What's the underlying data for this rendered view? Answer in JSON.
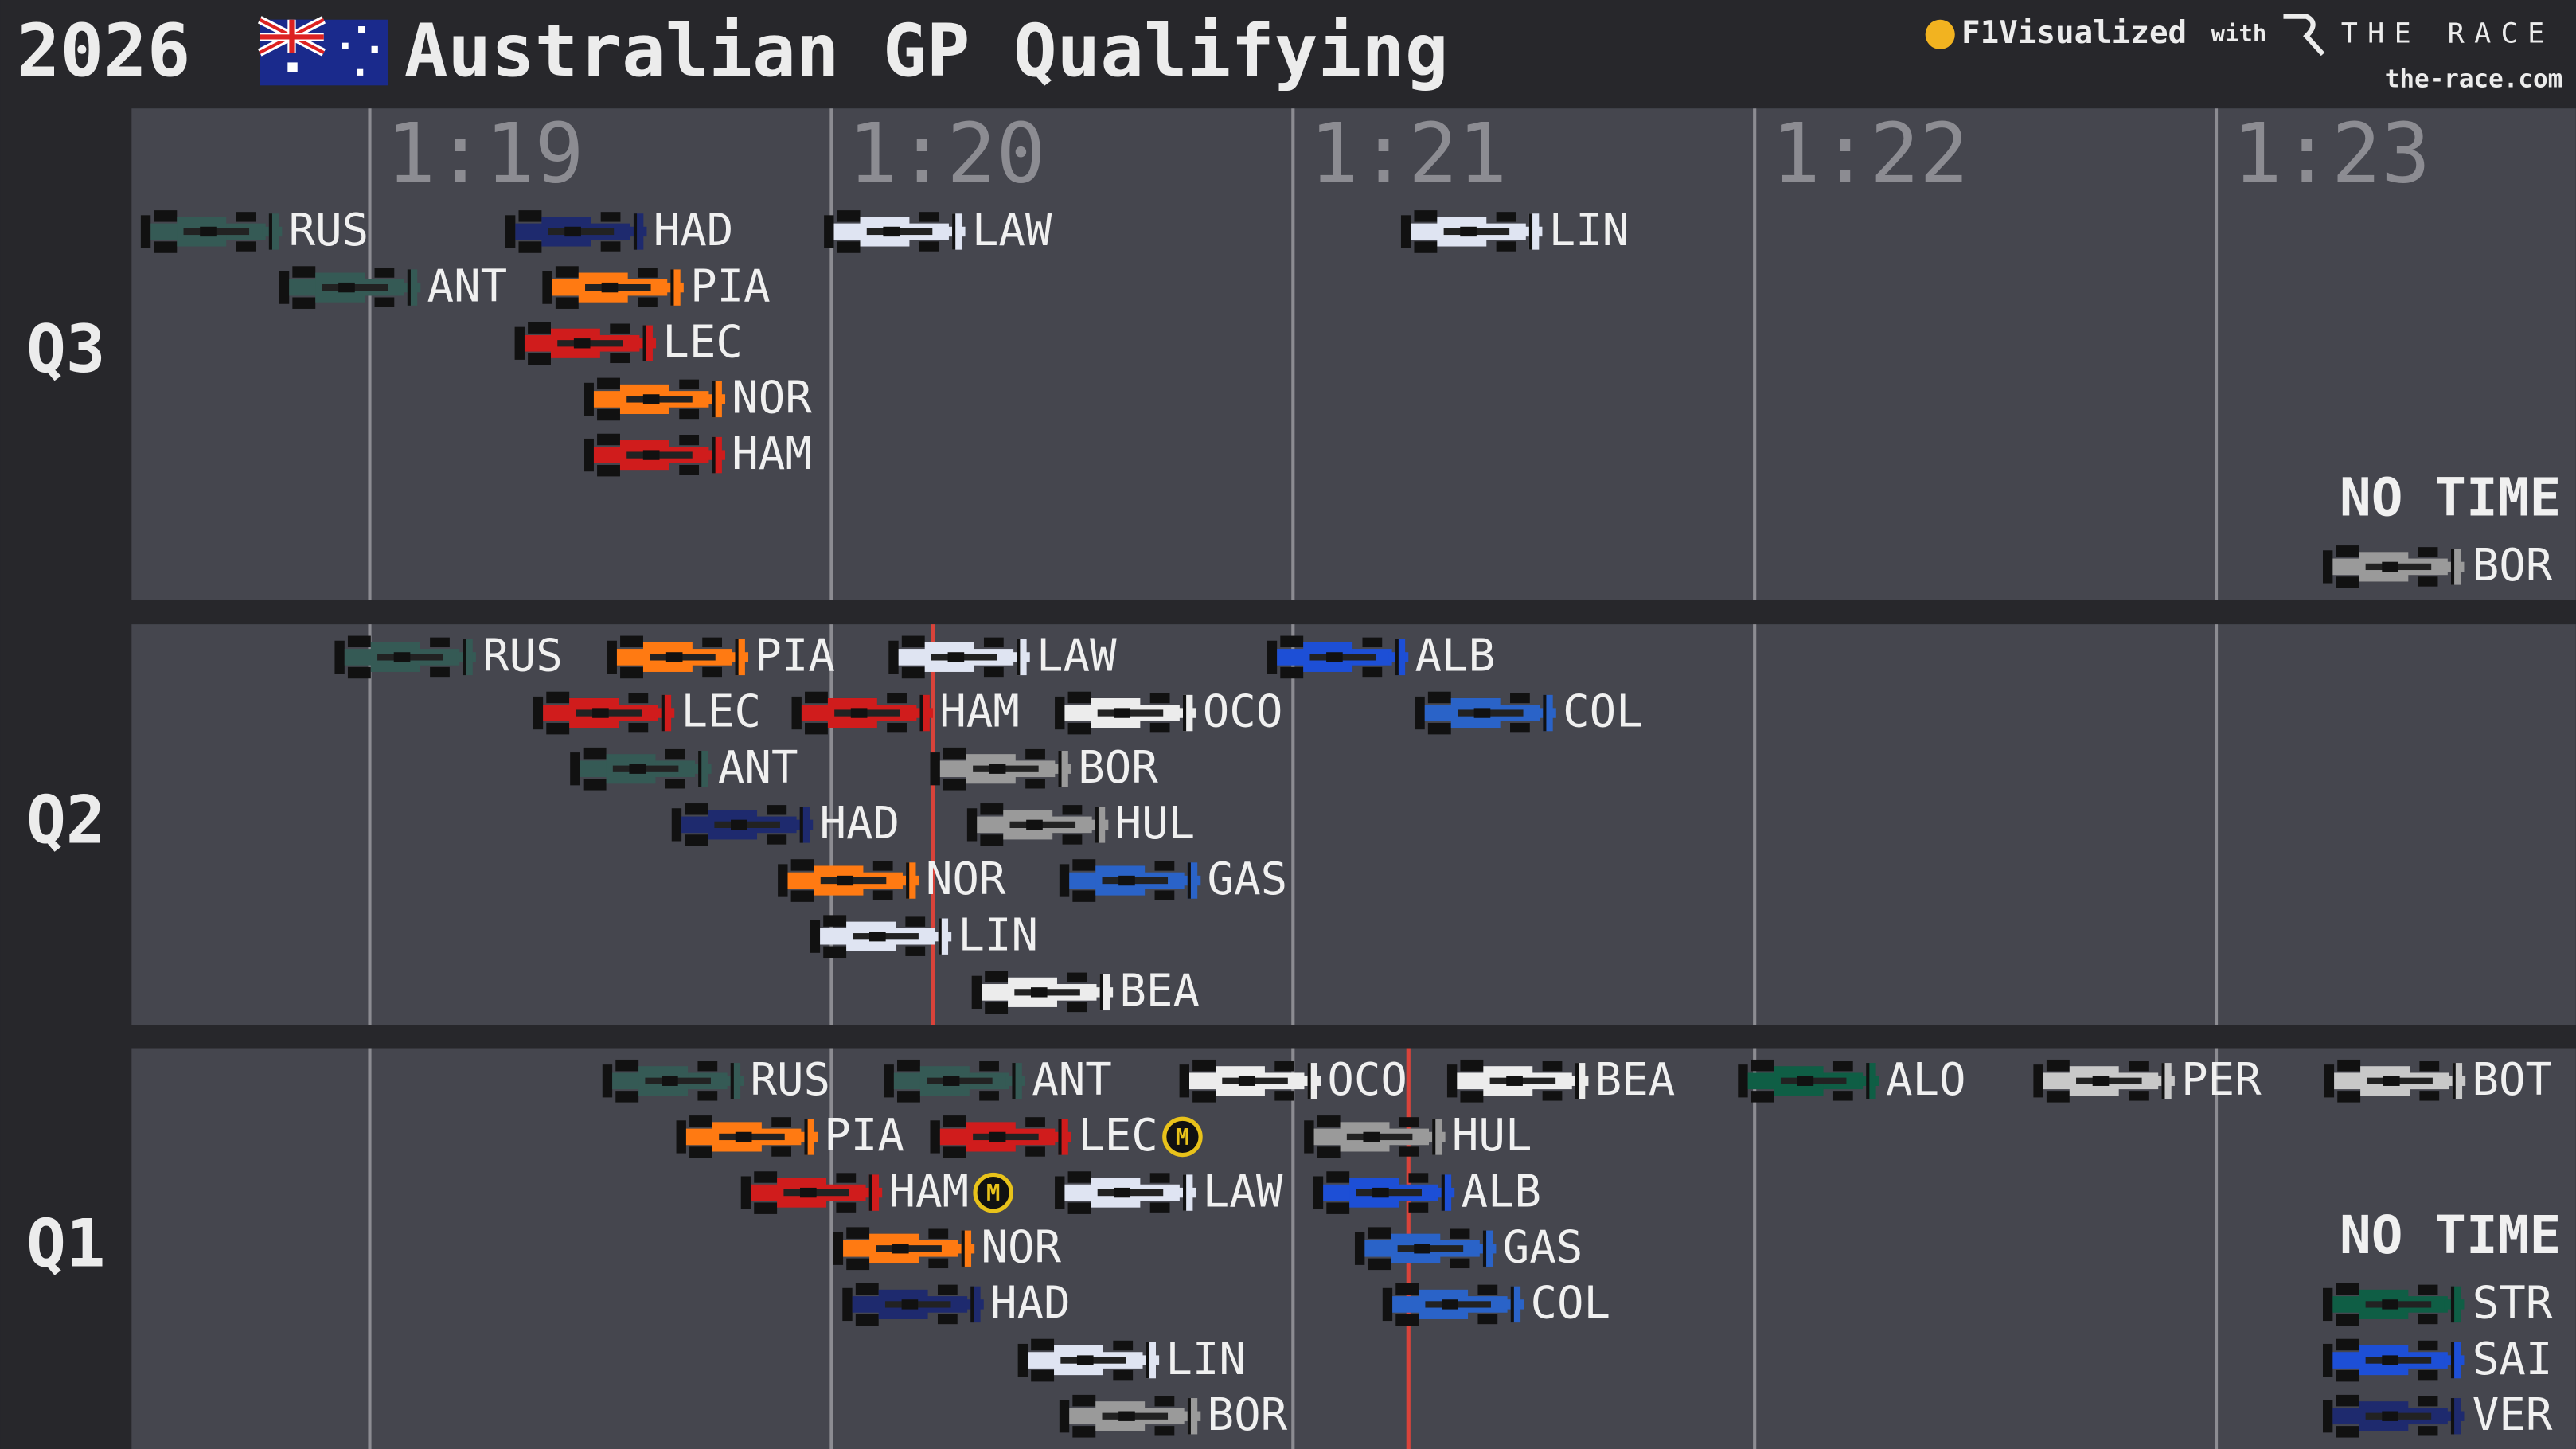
{
  "title_year": "2026",
  "title": "Australian GP Qualifying",
  "branding": {
    "source": "F1Visualized",
    "with": "with",
    "partner": "THE RACE",
    "url": "the-race.com"
  },
  "chart_data": [
    {
      "type": "timing",
      "panel_label": "Q3",
      "categories": [
        "RUS",
        "ANT",
        "HAD",
        "LEC",
        "PIA",
        "NOR",
        "HAM",
        "LAW",
        "LIN"
      ],
      "values": [
        78.81,
        79.11,
        79.6,
        79.62,
        79.68,
        79.77,
        79.77,
        80.29,
        81.54
      ],
      "colors": [
        "#355a55",
        "#355a55",
        "#1e2a6e",
        "#d01c1c",
        "#ff7a12",
        "#ff7a12",
        "#d01c1c",
        "#dfe4f2",
        "#dfe4f2"
      ],
      "no_time_label": "NO TIME",
      "no_time": [
        "BOR"
      ],
      "no_time_colors": [
        "#9a9a9a"
      ],
      "xlim": [
        78.484,
        83.779
      ],
      "xticks": [
        {
          "value": 79,
          "label": "1:19"
        },
        {
          "value": 80,
          "label": "1:20"
        },
        {
          "value": 81,
          "label": "1:21"
        },
        {
          "value": 82,
          "label": "1:22"
        },
        {
          "value": 83,
          "label": "1:23"
        }
      ]
    },
    {
      "type": "timing",
      "panel_label": "Q2",
      "categories": [
        "RUS",
        "LEC",
        "ANT",
        "PIA",
        "HAD",
        "NOR",
        "HAM",
        "LIN",
        "LAW",
        "BOR",
        "HUL",
        "BEA",
        "OCO",
        "GAS",
        "ALB",
        "COL"
      ],
      "values": [
        79.23,
        79.66,
        79.74,
        79.82,
        79.96,
        80.19,
        80.22,
        80.26,
        80.43,
        80.52,
        80.6,
        80.61,
        80.79,
        80.8,
        81.25,
        81.57
      ],
      "colors": [
        "#355a55",
        "#d01c1c",
        "#355a55",
        "#ff7a12",
        "#1e2a6e",
        "#ff7a12",
        "#d01c1c",
        "#dfe4f2",
        "#dfe4f2",
        "#9a9a9a",
        "#9a9a9a",
        "#ececec",
        "#ececec",
        "#2a63c8",
        "#1d4fd6",
        "#2a63c8"
      ],
      "cutoff": 80.22,
      "xlim": [
        78.484,
        83.779
      ],
      "xticks": [
        79,
        80,
        81,
        82,
        83
      ],
      "tick_labels": false
    },
    {
      "type": "timing",
      "panel_label": "Q1",
      "categories": [
        "RUS",
        "PIA",
        "HAM",
        "NOR",
        "HAD",
        "ANT",
        "LEC",
        "LIN",
        "LAW",
        "BOR",
        "OCO",
        "HUL",
        "ALB",
        "GAS",
        "COL",
        "BEA",
        "ALO",
        "PER",
        "BOT"
      ],
      "values": [
        79.81,
        79.97,
        80.11,
        80.31,
        80.33,
        80.42,
        80.52,
        80.71,
        80.79,
        80.8,
        81.06,
        81.33,
        81.35,
        81.44,
        81.5,
        81.64,
        82.27,
        82.91,
        83.54
      ],
      "colors": [
        "#355a55",
        "#ff7a12",
        "#d01c1c",
        "#ff7a12",
        "#1e2a6e",
        "#355a55",
        "#d01c1c",
        "#dfe4f2",
        "#dfe4f2",
        "#9a9a9a",
        "#ececec",
        "#9a9a9a",
        "#1d4fd6",
        "#2a63c8",
        "#2a63c8",
        "#ececec",
        "#0f5e45",
        "#c8c8c8",
        "#c8c8c8"
      ],
      "tyre_labels": [
        null,
        null,
        "M",
        null,
        null,
        null,
        "M",
        null,
        null,
        null,
        null,
        null,
        null,
        null,
        null,
        null,
        null,
        null,
        null
      ],
      "cutoff": 81.25,
      "no_time_label": "NO TIME",
      "no_time": [
        "STR",
        "SAI",
        "VER"
      ],
      "no_time_colors": [
        "#0f5e45",
        "#1d4fd6",
        "#1e2a6e"
      ],
      "xlim": [
        78.484,
        83.779
      ],
      "xticks": [
        79,
        80,
        81,
        82,
        83
      ],
      "tick_labels": false
    }
  ]
}
